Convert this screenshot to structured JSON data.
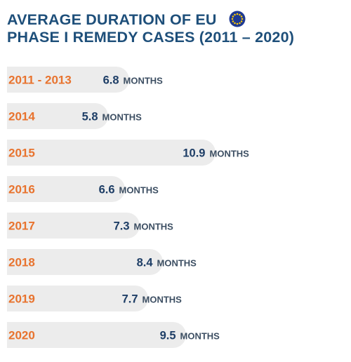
{
  "title_lines": [
    "AVERAGE DURATION OF EU",
    "PHASE I REMEDY CASES (2011 – 2020)"
  ],
  "flag_icon": "eu-flag-icon",
  "colors": {
    "title": "#1e4f7a",
    "category": "#e8732e",
    "value": "#1e3e66",
    "unit": "#3d4f63",
    "bar": "#ececec",
    "flag_blue": "#1f3a93",
    "flag_star": "#ffcc00"
  },
  "chart_data": {
    "type": "bar",
    "orientation": "horizontal",
    "categories": [
      "2011 - 2013",
      "2014",
      "2015",
      "2016",
      "2017",
      "2018",
      "2019",
      "2020"
    ],
    "values": [
      6.8,
      5.8,
      10.9,
      6.6,
      7.3,
      8.4,
      7.7,
      9.5
    ],
    "value_unit": "MONTHS",
    "title": "AVERAGE DURATION OF EU PHASE I REMEDY CASES (2011 – 2020)",
    "xlabel": "",
    "ylabel": ""
  }
}
